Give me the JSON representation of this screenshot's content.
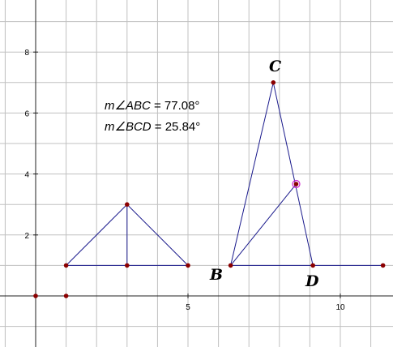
{
  "axes": {
    "x_ticks": [
      {
        "value": 5,
        "label": "5"
      },
      {
        "value": 10,
        "label": "10"
      }
    ],
    "y_ticks": [
      {
        "value": 2,
        "label": "2"
      },
      {
        "value": 4,
        "label": "4"
      },
      {
        "value": 6,
        "label": "6"
      },
      {
        "value": 8,
        "label": "8"
      }
    ]
  },
  "measurements": [
    {
      "prefix": "m∠",
      "name": "ABC",
      "value": " = 77.08°"
    },
    {
      "prefix": "m∠",
      "name": "BCD",
      "value": " = 25.84°"
    }
  ],
  "labels": {
    "B": "B",
    "C": "C",
    "D": "D"
  },
  "points": {
    "origin": [
      0,
      0
    ],
    "o2": [
      1,
      0
    ],
    "t1": [
      1,
      1
    ],
    "t2": [
      3,
      1
    ],
    "t3": [
      5,
      1
    ],
    "apex": [
      3,
      3
    ],
    "B": [
      6.4,
      1
    ],
    "C": [
      7.8,
      7
    ],
    "D": [
      9.1,
      1
    ],
    "E": [
      11.4,
      1
    ],
    "M": [
      8.55,
      3.67
    ]
  },
  "segments": [
    [
      "t1",
      "t3"
    ],
    [
      "t1",
      "apex"
    ],
    [
      "apex",
      "t3"
    ],
    [
      "apex",
      "t2"
    ],
    [
      "B",
      "E"
    ],
    [
      "B",
      "C"
    ],
    [
      "C",
      "D"
    ],
    [
      "B",
      "M"
    ]
  ],
  "visible_points": [
    "origin",
    "o2",
    "t1",
    "t2",
    "t3",
    "apex",
    "B",
    "C",
    "D",
    "E",
    "M"
  ],
  "selected_point": "M",
  "colors": {
    "segment": "#1a1a8c",
    "point": "#8b0000",
    "selection": "#d020d0",
    "grid": "#c0c0c0"
  }
}
